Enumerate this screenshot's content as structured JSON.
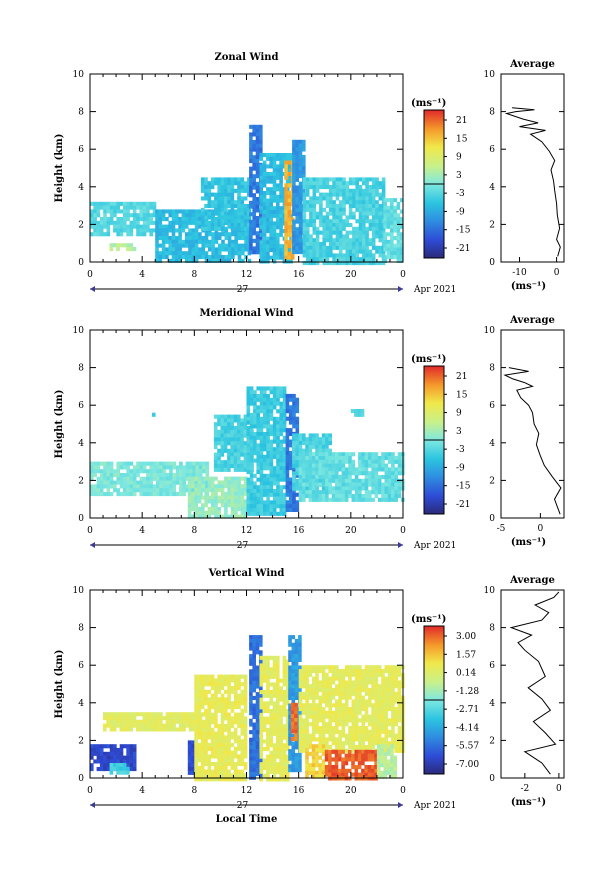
{
  "chart_data": [
    {
      "type": "heatmap",
      "title": "Zonal Wind",
      "ylabel": "Height (km)",
      "ylim": [
        0,
        10
      ],
      "xlim": [
        0,
        24
      ],
      "x_ticks": [
        "0",
        "4",
        "8",
        "12",
        "16",
        "20",
        "0"
      ],
      "y_ticks": [
        "0",
        "2",
        "4",
        "6",
        "8",
        "10"
      ],
      "date_label": "27",
      "month_label": "Apr 2021",
      "colorbar": {
        "unit": "(ms⁻¹)",
        "ticks": [
          "21",
          "15",
          "9",
          "3",
          "-3",
          "-9",
          "-15",
          "-21"
        ],
        "range": [
          -24,
          24
        ]
      },
      "regions": [
        {
          "x": [
            0.0,
            5.0
          ],
          "y": [
            1.5,
            3.2
          ],
          "value": -3
        },
        {
          "x": [
            1.5,
            3.5
          ],
          "y": [
            0.6,
            1.0
          ],
          "value": 4
        },
        {
          "x": [
            5.0,
            12.2
          ],
          "y": [
            0.0,
            2.8
          ],
          "value": -7
        },
        {
          "x": [
            8.5,
            12.2
          ],
          "y": [
            1.8,
            4.5
          ],
          "value": -6
        },
        {
          "x": [
            12.2,
            13.0
          ],
          "y": [
            0.5,
            7.3
          ],
          "value": -14
        },
        {
          "x": [
            13.0,
            15.3
          ],
          "y": [
            0.0,
            5.8
          ],
          "value": -7
        },
        {
          "x": [
            14.9,
            15.6
          ],
          "y": [
            0.2,
            5.4
          ],
          "value": 16
        },
        {
          "x": [
            15.5,
            16.3
          ],
          "y": [
            0.5,
            6.5
          ],
          "value": -11
        },
        {
          "x": [
            16.3,
            22.5
          ],
          "y": [
            0.0,
            4.5
          ],
          "value": -4
        },
        {
          "x": [
            22.5,
            24.0
          ],
          "y": [
            0.0,
            3.4
          ],
          "value": -2
        }
      ],
      "profile": {
        "title": "Average",
        "xlabel": "(ms⁻¹)",
        "xlim": [
          -15,
          2
        ],
        "ylim": [
          0,
          10
        ],
        "x_ticks": [
          "-10",
          "0"
        ],
        "y_ticks": [
          "0",
          "2",
          "4",
          "6",
          "8",
          "10"
        ],
        "x": [
          0.3,
          1.0,
          0.0,
          0.8,
          0.2,
          0.0,
          -0.5,
          -0.8,
          -1.5,
          -0.5,
          -2.0,
          -4.0,
          -7.0,
          -3.0,
          -10.0,
          -5.0,
          -9.0,
          -12.0,
          -13.5,
          -11.0,
          -6.0,
          -12.0
        ],
        "y": [
          0.3,
          0.8,
          1.2,
          1.8,
          2.5,
          3.1,
          3.8,
          4.3,
          4.9,
          5.4,
          5.9,
          6.4,
          6.8,
          7.0,
          7.2,
          7.4,
          7.6,
          7.8,
          7.9,
          8.0,
          8.1,
          8.2
        ]
      }
    },
    {
      "type": "heatmap",
      "title": "Meridional Wind",
      "ylabel": "Height (km)",
      "ylim": [
        0,
        10
      ],
      "xlim": [
        0,
        24
      ],
      "x_ticks": [
        "0",
        "4",
        "8",
        "12",
        "16",
        "20",
        "0"
      ],
      "y_ticks": [
        "0",
        "2",
        "4",
        "6",
        "8",
        "10"
      ],
      "date_label": "27",
      "month_label": "Apr 2021",
      "colorbar": {
        "unit": "(ms⁻¹)",
        "ticks": [
          "21",
          "15",
          "9",
          "3",
          "-3",
          "-9",
          "-15",
          "-21"
        ],
        "range": [
          -24,
          24
        ]
      },
      "regions": [
        {
          "x": [
            0.0,
            9.0
          ],
          "y": [
            1.2,
            3.0
          ],
          "value": 0
        },
        {
          "x": [
            7.5,
            12.0
          ],
          "y": [
            0.0,
            2.2
          ],
          "value": 2
        },
        {
          "x": [
            9.5,
            12.5
          ],
          "y": [
            2.5,
            5.5
          ],
          "value": -4
        },
        {
          "x": [
            12.0,
            15.0
          ],
          "y": [
            0.2,
            7.0
          ],
          "value": -5
        },
        {
          "x": [
            15.0,
            15.8
          ],
          "y": [
            0.5,
            6.6
          ],
          "value": -14
        },
        {
          "x": [
            15.5,
            18.5
          ],
          "y": [
            1.5,
            4.5
          ],
          "value": -4
        },
        {
          "x": [
            16.0,
            24.0
          ],
          "y": [
            1.0,
            3.5
          ],
          "value": -2
        },
        {
          "x": [
            4.5,
            4.9
          ],
          "y": [
            5.4,
            5.6
          ],
          "value": -4
        },
        {
          "x": [
            20.0,
            21.0
          ],
          "y": [
            5.5,
            5.8
          ],
          "value": -4
        }
      ],
      "profile": {
        "title": "Average",
        "xlabel": "(ms⁻¹)",
        "xlim": [
          -5,
          3
        ],
        "ylim": [
          0,
          10
        ],
        "x_ticks": [
          "-5",
          "0"
        ],
        "y_ticks": [
          "0",
          "2",
          "4",
          "6",
          "8",
          "10"
        ],
        "x": [
          2.5,
          1.8,
          2.6,
          1.5,
          0.5,
          0.0,
          -0.5,
          -0.2,
          -0.8,
          -1.0,
          -1.5,
          -2.5,
          -3.0,
          -1.0,
          -2.0,
          -3.5,
          -4.5,
          -1.5,
          -4.0
        ],
        "y": [
          0.2,
          1.0,
          1.6,
          2.2,
          2.8,
          3.3,
          3.9,
          4.5,
          5.0,
          5.6,
          6.0,
          6.4,
          6.8,
          7.0,
          7.2,
          7.4,
          7.6,
          7.8,
          8.0
        ]
      }
    },
    {
      "type": "heatmap",
      "title": "Vertical Wind",
      "xlabel": "Local Time",
      "ylabel": "Height (km)",
      "ylim": [
        0,
        10
      ],
      "xlim": [
        0,
        24
      ],
      "x_ticks": [
        "0",
        "4",
        "8",
        "12",
        "16",
        "20",
        "0"
      ],
      "y_ticks": [
        "0",
        "2",
        "4",
        "6",
        "8",
        "10"
      ],
      "date_label": "27",
      "month_label": "Apr 2021",
      "colorbar": {
        "unit": "(ms⁻¹)",
        "ticks": [
          "3.00",
          "1.57",
          "0.14",
          "-1.28",
          "-2.71",
          "-4.14",
          "-5.57",
          "-7.00"
        ],
        "range": [
          -7.7,
          3.7
        ]
      },
      "regions": [
        {
          "x": [
            0.0,
            3.5
          ],
          "y": [
            0.5,
            1.8
          ],
          "value": -6.5
        },
        {
          "x": [
            1.5,
            3.0
          ],
          "y": [
            0.3,
            0.8
          ],
          "value": -3.0
        },
        {
          "x": [
            7.5,
            8.0
          ],
          "y": [
            0.3,
            2.0
          ],
          "value": -6.5
        },
        {
          "x": [
            1.0,
            9.0
          ],
          "y": [
            2.5,
            3.5
          ],
          "value": 0.3
        },
        {
          "x": [
            8.0,
            12.0
          ],
          "y": [
            0.0,
            5.5
          ],
          "value": 0.5
        },
        {
          "x": [
            12.2,
            13.0
          ],
          "y": [
            0.0,
            7.6
          ],
          "value": -5.5
        },
        {
          "x": [
            13.0,
            15.2
          ],
          "y": [
            0.0,
            6.5
          ],
          "value": 0.4
        },
        {
          "x": [
            15.2,
            16.0
          ],
          "y": [
            0.5,
            7.6
          ],
          "value": -4.5
        },
        {
          "x": [
            15.4,
            15.8
          ],
          "y": [
            2.0,
            4.0
          ],
          "value": 2.8
        },
        {
          "x": [
            16.0,
            24.0
          ],
          "y": [
            1.5,
            6.0
          ],
          "value": 0.4
        },
        {
          "x": [
            16.5,
            18.0
          ],
          "y": [
            0.0,
            1.8
          ],
          "value": 1.2
        },
        {
          "x": [
            18.0,
            22.0
          ],
          "y": [
            0.0,
            1.5
          ],
          "value": 3.0
        },
        {
          "x": [
            22.0,
            23.5
          ],
          "y": [
            0.0,
            1.8
          ],
          "value": -1.0
        }
      ],
      "profile": {
        "title": "Average",
        "xlabel": "(ms⁻¹)",
        "xlim": [
          -3.4,
          0.3
        ],
        "ylim": [
          0,
          10
        ],
        "x_ticks": [
          "-2",
          "0"
        ],
        "y_ticks": [
          "0",
          "2",
          "4",
          "6",
          "8",
          "10"
        ],
        "x": [
          -0.5,
          -1.0,
          -2.0,
          -0.2,
          -0.8,
          -1.5,
          -0.5,
          -1.0,
          -1.8,
          -0.8,
          -1.2,
          -2.0,
          -2.4,
          -1.6,
          -2.8,
          -1.0,
          -0.6,
          -1.4,
          -0.3,
          0.0
        ],
        "y": [
          0.2,
          0.8,
          1.4,
          1.8,
          2.4,
          3.0,
          3.6,
          4.2,
          4.8,
          5.4,
          6.2,
          6.8,
          7.2,
          7.6,
          8.0,
          8.4,
          8.8,
          9.2,
          9.6,
          9.9
        ]
      }
    }
  ]
}
